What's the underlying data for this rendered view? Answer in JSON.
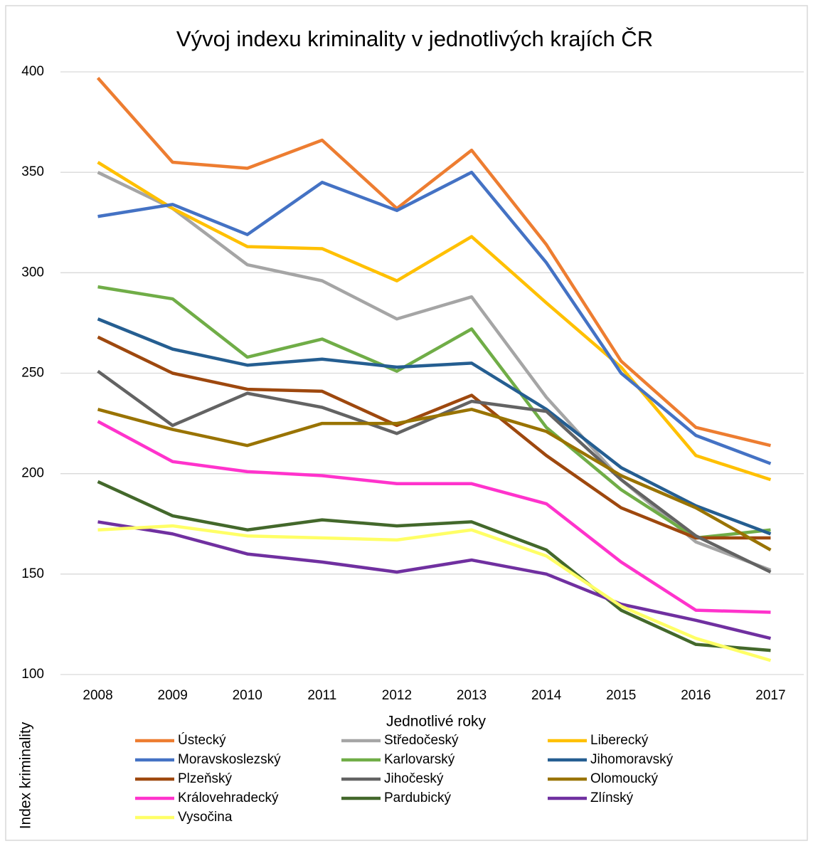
{
  "chart_data": {
    "type": "line",
    "title": "Vývoj indexu kriminality v jednotlivých krajích ČR",
    "x_label": "Jednotlivé roky",
    "y_label": "Index kriminality",
    "categories": [
      "2008",
      "2009",
      "2010",
      "2011",
      "2012",
      "2013",
      "2014",
      "2015",
      "2016",
      "2017"
    ],
    "ylim": [
      100,
      400
    ],
    "yticks": [
      100,
      150,
      200,
      250,
      300,
      350,
      400
    ],
    "grid": true,
    "legend": "bottom",
    "series": [
      {
        "name": "Ústecký",
        "color": "#ed7d31",
        "values": [
          397,
          355,
          352,
          366,
          332,
          361,
          314,
          256,
          223,
          214
        ]
      },
      {
        "name": "Středočeský",
        "color": "#a5a5a5",
        "values": [
          350,
          332,
          304,
          296,
          277,
          288,
          238,
          197,
          166,
          152
        ]
      },
      {
        "name": "Liberecký",
        "color": "#ffc000",
        "values": [
          355,
          332,
          313,
          312,
          296,
          318,
          285,
          253,
          209,
          197
        ]
      },
      {
        "name": "Moravskoslezský",
        "color": "#4472c4",
        "values": [
          328,
          334,
          319,
          345,
          331,
          350,
          305,
          250,
          219,
          205
        ]
      },
      {
        "name": "Karlovarský",
        "color": "#70ad47",
        "values": [
          293,
          287,
          258,
          267,
          251,
          272,
          223,
          192,
          168,
          172
        ]
      },
      {
        "name": "Jihomoravský",
        "color": "#255e91",
        "values": [
          277,
          262,
          254,
          257,
          253,
          255,
          232,
          203,
          184,
          170
        ]
      },
      {
        "name": "Plzeňský",
        "color": "#9e480e",
        "values": [
          268,
          250,
          242,
          241,
          224,
          239,
          209,
          183,
          168,
          168
        ]
      },
      {
        "name": "Jihočeský",
        "color": "#636363",
        "values": [
          251,
          224,
          240,
          233,
          220,
          236,
          231,
          197,
          169,
          151
        ]
      },
      {
        "name": "Olomoucký",
        "color": "#997300",
        "values": [
          232,
          222,
          214,
          225,
          225,
          232,
          221,
          199,
          183,
          162
        ]
      },
      {
        "name": "Královehradecký",
        "color": "#ff33cc",
        "values": [
          226,
          206,
          201,
          199,
          195,
          195,
          185,
          156,
          132,
          131
        ]
      },
      {
        "name": "Pardubický",
        "color": "#43682b",
        "values": [
          196,
          179,
          172,
          177,
          174,
          176,
          162,
          132,
          115,
          112
        ]
      },
      {
        "name": "Zlínský",
        "color": "#7030a0",
        "values": [
          176,
          170,
          160,
          156,
          151,
          157,
          150,
          135,
          127,
          118
        ]
      },
      {
        "name": "Vysočina",
        "color": "#ffff66",
        "values": [
          172,
          174,
          169,
          168,
          167,
          172,
          159,
          134,
          118,
          107
        ]
      }
    ]
  }
}
